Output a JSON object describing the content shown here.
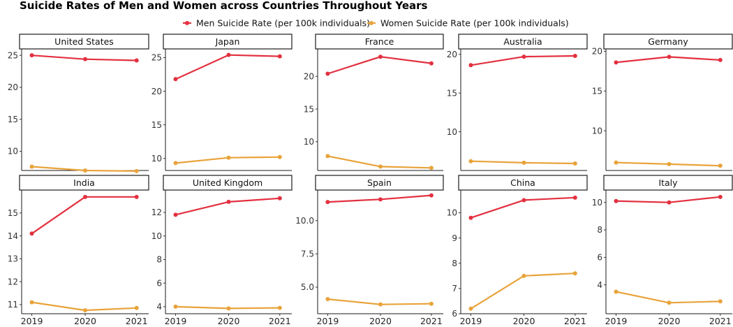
{
  "chart_data": {
    "type": "line",
    "title": "Suicide Rates of Men and Women across Countries Throughout Years",
    "legend_position": "top",
    "grid": false,
    "series_meta": [
      {
        "key": "men",
        "name": "Men Suicide Rate (per 100k individuals)",
        "color": "#e3303f"
      },
      {
        "key": "women",
        "name": "Women Suicide Rate (per 100k individuals)",
        "color": "#e8a33a"
      }
    ],
    "x": [
      "2019",
      "2020",
      "2021"
    ],
    "panels": [
      {
        "country": "United States",
        "ylim": [
          7.0,
          26.0
        ],
        "yticks": [
          10,
          15,
          20,
          25
        ],
        "ytick_labels": [
          "10",
          "15",
          "20",
          "25"
        ],
        "men": [
          25.0,
          24.4,
          24.2
        ],
        "women": [
          7.6,
          7.0,
          6.9
        ]
      },
      {
        "country": "Japan",
        "ylim": [
          8.2,
          26.3
        ],
        "yticks": [
          10,
          15,
          20,
          25
        ],
        "ytick_labels": [
          "10",
          "15",
          "20",
          "25"
        ],
        "men": [
          21.8,
          25.4,
          25.2
        ],
        "women": [
          9.3,
          10.1,
          10.2
        ]
      },
      {
        "country": "France",
        "ylim": [
          5.6,
          24.2
        ],
        "yticks": [
          10,
          15,
          20
        ],
        "ytick_labels": [
          "10",
          "15",
          "20"
        ],
        "men": [
          20.4,
          23.0,
          22.0
        ],
        "women": [
          7.8,
          6.2,
          6.0
        ]
      },
      {
        "country": "Australia",
        "ylim": [
          5.0,
          20.7
        ],
        "yticks": [
          10,
          15,
          20
        ],
        "ytick_labels": [
          "10",
          "15",
          "20"
        ],
        "men": [
          18.6,
          19.7,
          19.8
        ],
        "women": [
          6.2,
          6.0,
          5.9
        ]
      },
      {
        "country": "Germany",
        "ylim": [
          5.0,
          20.3
        ],
        "yticks": [
          10,
          15,
          20
        ],
        "ytick_labels": [
          "10",
          "15",
          "20"
        ],
        "men": [
          18.6,
          19.3,
          18.9
        ],
        "women": [
          6.0,
          5.8,
          5.6
        ]
      },
      {
        "country": "India",
        "ylim": [
          10.6,
          16.0
        ],
        "yticks": [
          11,
          12,
          13,
          14,
          15
        ],
        "ytick_labels": [
          "11",
          "12",
          "13",
          "14",
          "15"
        ],
        "men": [
          14.1,
          15.7,
          15.7
        ],
        "women": [
          11.1,
          10.75,
          10.85
        ]
      },
      {
        "country": "United Kingdom",
        "ylim": [
          3.4,
          13.9
        ],
        "yticks": [
          4,
          6,
          8,
          10,
          12
        ],
        "ytick_labels": [
          "4",
          "6",
          "8",
          "10",
          "12"
        ],
        "men": [
          11.8,
          12.9,
          13.2
        ],
        "women": [
          4.0,
          3.85,
          3.9
        ]
      },
      {
        "country": "Spain",
        "ylim": [
          3.0,
          12.3
        ],
        "yticks": [
          5.0,
          7.5,
          10.0
        ],
        "ytick_labels": [
          "5.0",
          "7.5",
          "10.0"
        ],
        "men": [
          11.4,
          11.6,
          11.9
        ],
        "women": [
          4.1,
          3.7,
          3.75
        ]
      },
      {
        "country": "China",
        "ylim": [
          6.0,
          10.9
        ],
        "yticks": [
          6,
          7,
          8,
          9,
          10
        ],
        "ytick_labels": [
          "6",
          "7",
          "8",
          "9",
          "10"
        ],
        "men": [
          9.8,
          10.5,
          10.6
        ],
        "women": [
          6.2,
          7.5,
          7.6
        ]
      },
      {
        "country": "Italy",
        "ylim": [
          1.9,
          10.9
        ],
        "yticks": [
          4,
          6,
          8,
          10
        ],
        "ytick_labels": [
          "4",
          "6",
          "8",
          "10"
        ],
        "men": [
          10.1,
          10.0,
          10.4
        ],
        "women": [
          3.5,
          2.7,
          2.8
        ]
      }
    ]
  }
}
